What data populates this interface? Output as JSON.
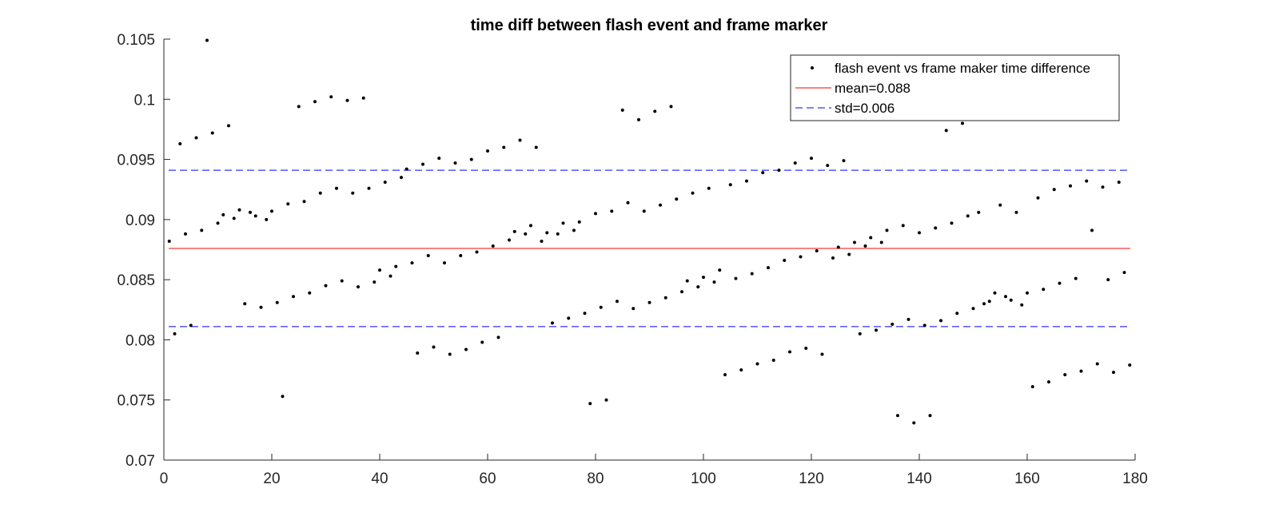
{
  "chart_data": {
    "type": "scatter",
    "title": "time diff between flash event and frame marker",
    "xlabel": "",
    "ylabel": "",
    "xlim": [
      0,
      180
    ],
    "ylim": [
      0.07,
      0.105
    ],
    "x_ticks": [
      0,
      20,
      40,
      60,
      80,
      100,
      120,
      140,
      160,
      180
    ],
    "y_ticks": [
      0.07,
      0.075,
      0.08,
      0.085,
      0.09,
      0.095,
      0.1,
      0.105
    ],
    "x_tick_labels": [
      "0",
      "20",
      "40",
      "60",
      "80",
      "100",
      "120",
      "140",
      "160",
      "180"
    ],
    "y_tick_labels": [
      "0.07",
      "0.075",
      "0.08",
      "0.085",
      "0.09",
      "0.095",
      "0.1",
      "0.105"
    ],
    "grid": false,
    "legend_position": "top-right",
    "legend": [
      {
        "label": "flash event vs frame maker time difference",
        "style": "marker",
        "color": "#000000"
      },
      {
        "label": "mean=0.088",
        "style": "solid",
        "color": "#ff0000"
      },
      {
        "label": "std=0.006",
        "style": "dashed",
        "color": "#0000ff"
      }
    ],
    "series": [
      {
        "name": "flash event vs frame maker time difference",
        "color": "#000000",
        "x": [
          1,
          2,
          3,
          4,
          5,
          6,
          7,
          8,
          9,
          10,
          11,
          12,
          13,
          14,
          15,
          16,
          17,
          18,
          19,
          20,
          21,
          22,
          23,
          24,
          25,
          26,
          27,
          28,
          29,
          30,
          31,
          32,
          33,
          34,
          35,
          36,
          37,
          38,
          39,
          40,
          41,
          42,
          43,
          44,
          45,
          46,
          47,
          48,
          49,
          50,
          51,
          52,
          53,
          54,
          55,
          56,
          57,
          58,
          59,
          60,
          61,
          62,
          63,
          64,
          65,
          66,
          67,
          68,
          69,
          70,
          71,
          72,
          73,
          74,
          75,
          76,
          77,
          78,
          79,
          80,
          81,
          82,
          83,
          84,
          85,
          86,
          87,
          88,
          89,
          90,
          91,
          92,
          93,
          94,
          95,
          96,
          97,
          98,
          99,
          100,
          101,
          102,
          103,
          104,
          105,
          106,
          107,
          108,
          109,
          110,
          111,
          112,
          113,
          114,
          115,
          116,
          117,
          118,
          119,
          120,
          121,
          122,
          123,
          124,
          125,
          126,
          127,
          128,
          129,
          130,
          131,
          132,
          133,
          134,
          135,
          136,
          137,
          138,
          139,
          140,
          141,
          142,
          143,
          144,
          145,
          146,
          147,
          148,
          149,
          150,
          151,
          152,
          153,
          154,
          155,
          156,
          157,
          158,
          159,
          160,
          161,
          162,
          163,
          164,
          165,
          166,
          167,
          168,
          169,
          170,
          171,
          172,
          173,
          174,
          175,
          176,
          177,
          178,
          179
        ],
        "y": [
          0.0882,
          0.0805,
          0.0963,
          0.0888,
          0.0812,
          0.0968,
          0.0891,
          0.1049,
          0.0972,
          0.0897,
          0.0904,
          0.0978,
          0.0901,
          0.0908,
          0.083,
          0.0906,
          0.0903,
          0.0827,
          0.09,
          0.0907,
          0.0831,
          0.0753,
          0.0913,
          0.0836,
          0.0994,
          0.0915,
          0.0839,
          0.0998,
          0.0922,
          0.0845,
          0.1002,
          0.0926,
          0.0849,
          0.0999,
          0.0922,
          0.0844,
          0.1001,
          0.0926,
          0.0848,
          0.0858,
          0.0931,
          0.0853,
          0.0861,
          0.0935,
          0.0942,
          0.0864,
          0.0789,
          0.0946,
          0.087,
          0.0794,
          0.0951,
          0.0864,
          0.0788,
          0.0947,
          0.087,
          0.0792,
          0.095,
          0.0873,
          0.0798,
          0.0957,
          0.0878,
          0.0802,
          0.096,
          0.0883,
          0.089,
          0.0966,
          0.0888,
          0.0895,
          0.096,
          0.0882,
          0.0889,
          0.0814,
          0.0888,
          0.0897,
          0.0818,
          0.0891,
          0.0898,
          0.0822,
          0.0747,
          0.0905,
          0.0827,
          0.075,
          0.0907,
          0.0832,
          0.0991,
          0.0914,
          0.0826,
          0.0983,
          0.0907,
          0.0831,
          0.099,
          0.0912,
          0.0835,
          0.0994,
          0.0917,
          0.084,
          0.0849,
          0.0922,
          0.0844,
          0.0852,
          0.0926,
          0.0848,
          0.0858,
          0.0771,
          0.0929,
          0.0851,
          0.0775,
          0.0932,
          0.0855,
          0.078,
          0.0939,
          0.086,
          0.0783,
          0.0941,
          0.0866,
          0.079,
          0.0947,
          0.0869,
          0.0793,
          0.0951,
          0.0874,
          0.0788,
          0.0945,
          0.0868,
          0.0877,
          0.0949,
          0.0871,
          0.0881,
          0.0805,
          0.0878,
          0.0885,
          0.0808,
          0.0881,
          0.0891,
          0.0813,
          0.0737,
          0.0895,
          0.0817,
          0.0731,
          0.0889,
          0.0812,
          0.0737,
          0.0893,
          0.0816,
          0.0974,
          0.0897,
          0.0822,
          0.098,
          0.0903,
          0.0826,
          0.0906,
          0.083,
          0.0832,
          0.0839,
          0.0912,
          0.0836,
          0.0833,
          0.0906,
          0.0829,
          0.0839,
          0.0761,
          0.0918,
          0.0842,
          0.0765,
          0.0925,
          0.0847,
          0.0771,
          0.0928,
          0.0851,
          0.0774,
          0.0932,
          0.0891,
          0.078,
          0.0927,
          0.085,
          0.0773,
          0.0931,
          0.0856,
          0.0779
        ]
      }
    ],
    "reference_lines": [
      {
        "name": "mean=0.088",
        "y": 0.0876,
        "color": "#ff0000",
        "style": "solid"
      },
      {
        "name": "std=0.006",
        "y": 0.0941,
        "color": "#0000ff",
        "style": "dashed"
      },
      {
        "name": "std=0.006",
        "y": 0.0811,
        "color": "#0000ff",
        "style": "dashed"
      }
    ]
  }
}
